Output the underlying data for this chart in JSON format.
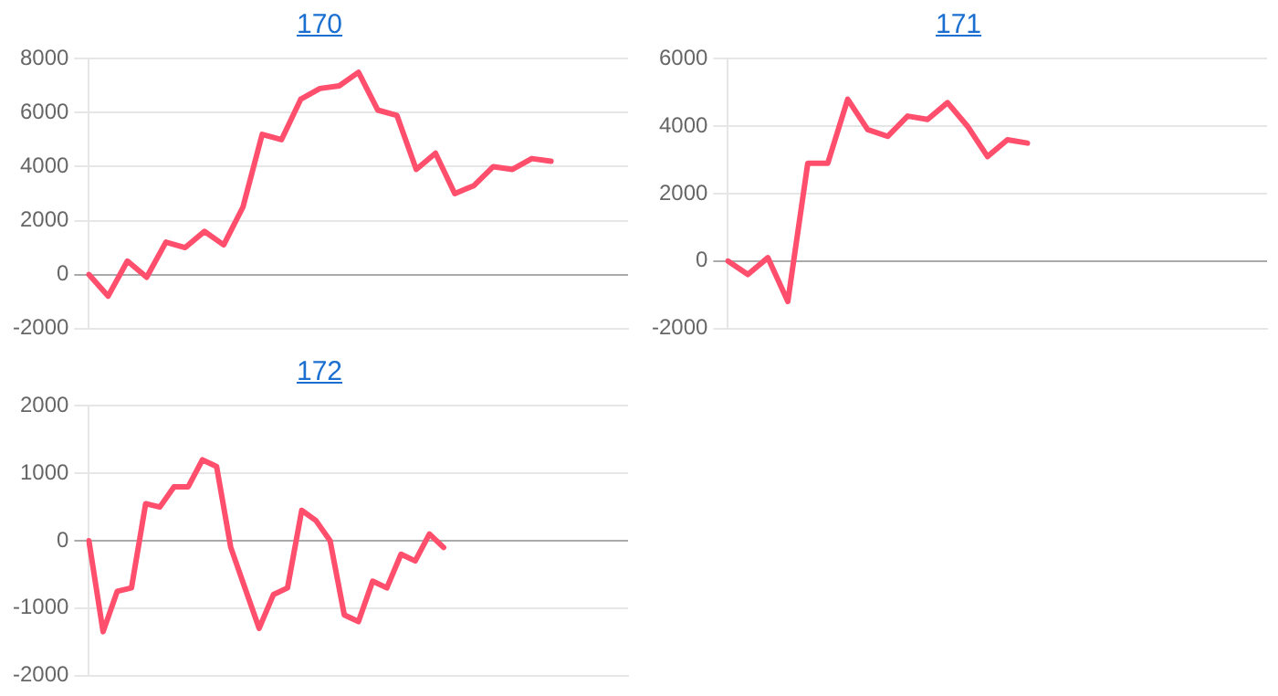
{
  "chart_data": [
    {
      "type": "line",
      "title": "170",
      "categories": [
        null,
        null,
        null,
        null,
        null,
        null,
        null,
        null,
        null,
        null,
        null,
        null,
        null,
        null,
        null,
        null,
        null,
        null,
        null,
        null,
        null,
        null,
        null,
        null,
        null,
        null,
        null,
        null,
        null
      ],
      "series": [
        {
          "color": "#ff4f6d",
          "values": [
            0,
            -800,
            500,
            -100,
            1200,
            1000,
            1600,
            1100,
            2500,
            5200,
            5000,
            6500,
            6900,
            7000,
            7500,
            6100,
            5900,
            3900,
            4500,
            3000,
            3300,
            4000,
            3900,
            4300,
            4200,
            null,
            null,
            null,
            null
          ]
        }
      ],
      "ylim": [
        -2000,
        8000
      ],
      "yticks": [
        -2000,
        0,
        2000,
        4000,
        6000,
        8000
      ],
      "grid": "y",
      "legend": false,
      "marker": "none",
      "line_style": "solid",
      "tick_labels": "y"
    },
    {
      "type": "line",
      "title": "171",
      "categories": [
        null,
        null,
        null,
        null,
        null,
        null,
        null,
        null,
        null,
        null,
        null,
        null,
        null,
        null,
        null,
        null,
        null,
        null,
        null,
        null,
        null,
        null,
        null,
        null,
        null,
        null,
        null,
        null
      ],
      "series": [
        {
          "color": "#ff4f6d",
          "values": [
            0,
            -400,
            100,
            -1200,
            2900,
            2900,
            4800,
            3900,
            3700,
            4300,
            4200,
            4700,
            4000,
            3100,
            3600,
            3500,
            null,
            null,
            null,
            null,
            null,
            null,
            null,
            null,
            null,
            null,
            null,
            null
          ]
        }
      ],
      "ylim": [
        -2000,
        6000
      ],
      "yticks": [
        -2000,
        0,
        2000,
        4000,
        6000
      ],
      "grid": "y",
      "legend": false,
      "marker": "none",
      "line_style": "solid",
      "tick_labels": "y"
    },
    {
      "type": "line",
      "title": "172",
      "categories": [
        null,
        null,
        null,
        null,
        null,
        null,
        null,
        null,
        null,
        null,
        null,
        null,
        null,
        null,
        null,
        null,
        null,
        null,
        null,
        null,
        null,
        null,
        null,
        null,
        null,
        null,
        null,
        null,
        null,
        null,
        null,
        null,
        null,
        null,
        null,
        null,
        null,
        null,
        null
      ],
      "series": [
        {
          "color": "#ff4f6d",
          "values": [
            0,
            -1350,
            -750,
            -700,
            550,
            500,
            800,
            800,
            1200,
            1100,
            -100,
            -700,
            -1300,
            -800,
            -700,
            450,
            300,
            0,
            -1100,
            -1200,
            -600,
            -700,
            -200,
            -300,
            100,
            -100,
            null,
            null,
            null,
            null,
            null,
            null,
            null,
            null,
            null,
            null,
            null,
            null,
            null
          ]
        }
      ],
      "ylim": [
        -2000,
        2000
      ],
      "yticks": [
        -2000,
        -1000,
        0,
        1000,
        2000
      ],
      "grid": "y",
      "legend": false,
      "marker": "none",
      "line_style": "solid",
      "tick_labels": "y"
    }
  ]
}
